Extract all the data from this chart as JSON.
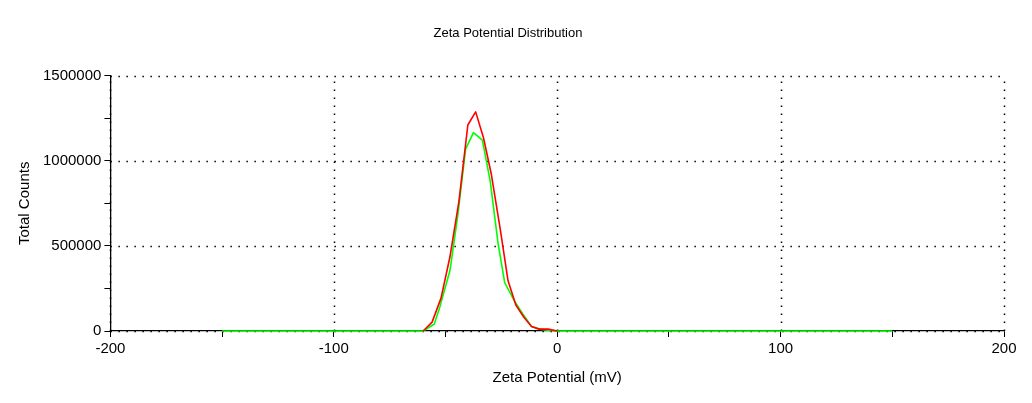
{
  "chart_data": {
    "type": "line",
    "title": "Zeta Potential Distribution",
    "xlabel": "Zeta Potential (mV)",
    "ylabel": "Total Counts",
    "xlim": [
      -200,
      200
    ],
    "xticks": [
      -200,
      {
        "value": -150,
        "label": null
      },
      -100,
      {
        "value": -50,
        "label": null
      },
      0,
      {
        "value": 50,
        "label": null
      },
      100,
      {
        "value": 150,
        "label": null
      },
      200
    ],
    "ylim": [
      0,
      1500000
    ],
    "yticks": [
      0,
      {
        "value": 250000,
        "label": null
      },
      500000,
      {
        "value": 750000,
        "label": null
      },
      1000000,
      {
        "value": 1250000,
        "label": null
      },
      1500000
    ],
    "grid": true,
    "legend": false,
    "marker": "none",
    "line_style": "solid",
    "series": [
      {
        "color": "#ff0000",
        "x": [
          -60,
          -56,
          -52,
          -48,
          -44,
          -40,
          -36.5,
          -33,
          -29.5,
          -25.5,
          -22,
          -18.5,
          -15,
          -11.5,
          -8,
          -4,
          0
        ],
        "values": [
          0,
          52000,
          193000,
          436000,
          760000,
          1210000,
          1287000,
          1135000,
          922000,
          598000,
          295000,
          153000,
          82000,
          27000,
          11000,
          11000,
          0
        ]
      },
      {
        "color": "#00ff00",
        "x": [
          -150,
          -60,
          -55,
          -52.5,
          -48,
          -44.5,
          -41,
          -37.5,
          -33.5,
          -30,
          -26.5,
          -23.5,
          -19,
          -15,
          -11.5,
          -8,
          -4,
          0,
          150
        ],
        "values": [
          0,
          0,
          41000,
          143000,
          355000,
          679000,
          1068000,
          1165000,
          1121000,
          882000,
          518000,
          284000,
          173000,
          92000,
          27000,
          11000,
          5000,
          0,
          0
        ]
      }
    ]
  }
}
